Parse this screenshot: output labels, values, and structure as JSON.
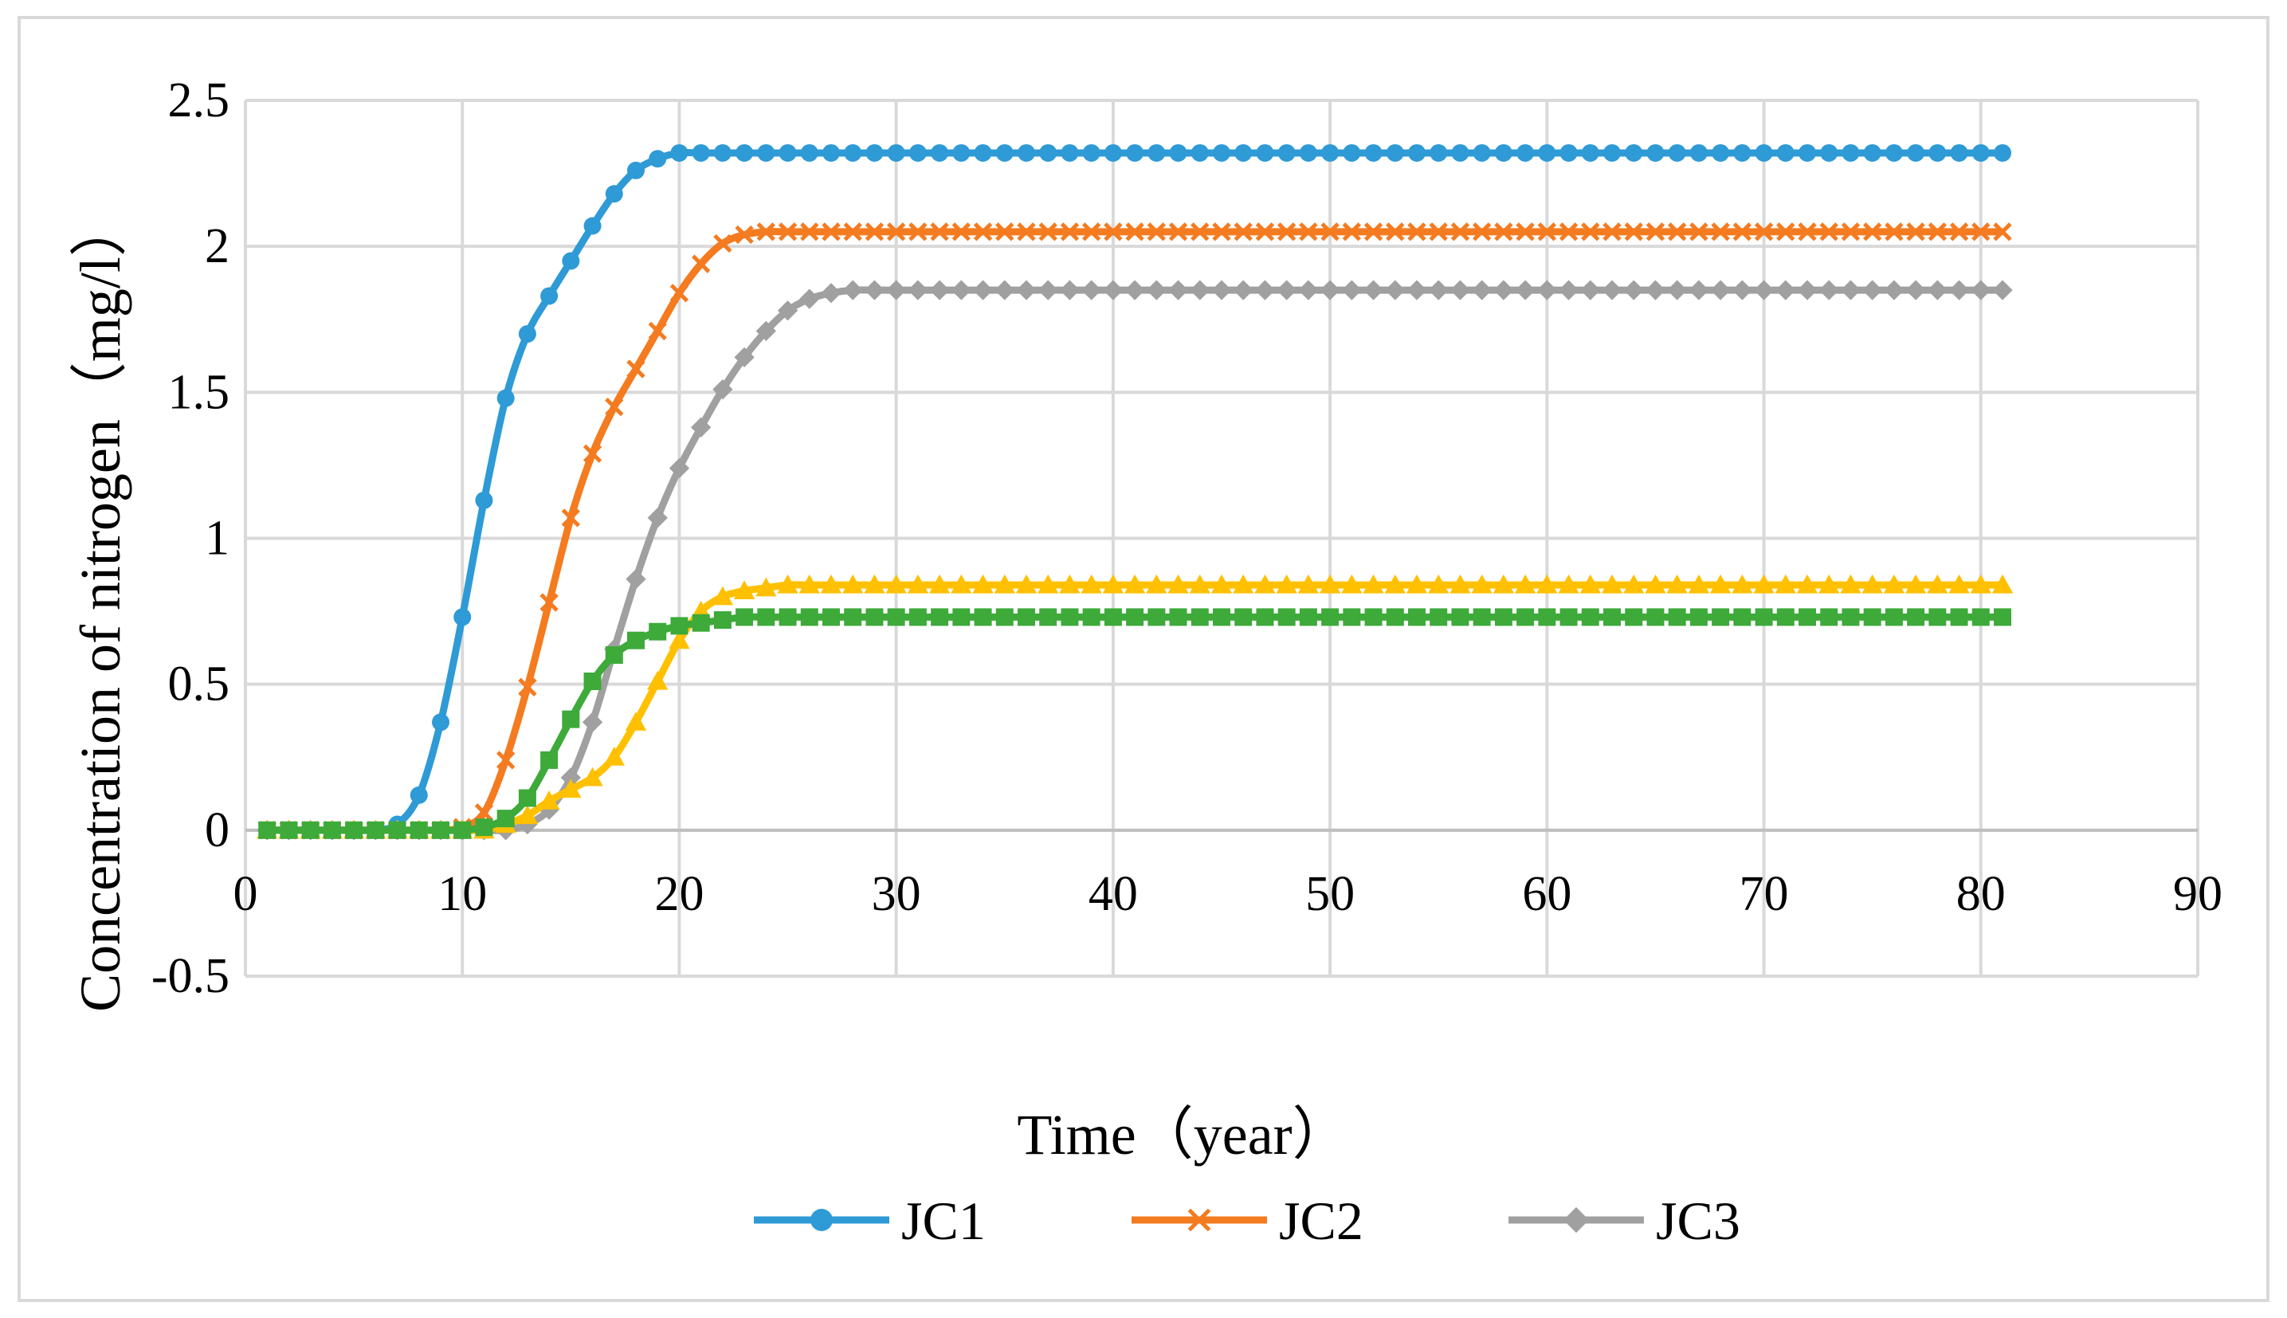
{
  "chart_data": {
    "type": "line",
    "title": "",
    "xlabel": "Time（year）",
    "ylabel": "Concentration of nitrogen（mg/l）",
    "xlim": [
      0,
      90
    ],
    "ylim": [
      -0.5,
      2.5
    ],
    "xticks": [
      "0",
      "10",
      "20",
      "30",
      "40",
      "50",
      "60",
      "70",
      "80",
      "90"
    ],
    "yticks": [
      "2.5",
      "2",
      "1.5",
      "1",
      "0.5",
      "0",
      "-0.5"
    ],
    "grid": true,
    "legend": "bottom-center",
    "x": [
      1,
      2,
      3,
      4,
      5,
      6,
      7,
      8,
      9,
      10,
      11,
      12,
      13,
      14,
      15,
      16,
      17,
      18,
      19,
      20,
      21,
      22,
      23,
      24,
      25,
      26,
      27,
      28,
      29,
      30,
      31,
      32,
      33,
      34,
      35,
      36,
      37,
      38,
      39,
      40,
      41,
      42,
      43,
      44,
      45,
      46,
      47,
      48,
      49,
      50,
      51,
      52,
      53,
      54,
      55,
      56,
      57,
      58,
      59,
      60,
      61,
      62,
      63,
      64,
      65,
      66,
      67,
      68,
      69,
      70,
      71,
      72,
      73,
      74,
      75,
      76,
      77,
      78,
      79,
      80,
      81
    ],
    "series": [
      {
        "name": "JC1",
        "color": "#2E9AD6",
        "marker": "circle",
        "in_legend": true,
        "values": [
          0,
          0,
          0,
          0,
          0,
          0,
          0.02,
          0.12,
          0.37,
          0.73,
          1.13,
          1.48,
          1.7,
          1.83,
          1.95,
          2.07,
          2.18,
          2.26,
          2.3,
          2.32,
          2.32,
          2.32,
          2.32,
          2.32,
          2.32,
          2.32,
          2.32,
          2.32,
          2.32,
          2.32,
          2.32,
          2.32,
          2.32,
          2.32,
          2.32,
          2.32,
          2.32,
          2.32,
          2.32,
          2.32,
          2.32,
          2.32,
          2.32,
          2.32,
          2.32,
          2.32,
          2.32,
          2.32,
          2.32,
          2.32,
          2.32,
          2.32,
          2.32,
          2.32,
          2.32,
          2.32,
          2.32,
          2.32,
          2.32,
          2.32,
          2.32,
          2.32,
          2.32,
          2.32,
          2.32,
          2.32,
          2.32,
          2.32,
          2.32,
          2.32,
          2.32,
          2.32,
          2.32,
          2.32,
          2.32,
          2.32,
          2.32,
          2.32,
          2.32,
          2.32,
          2.32
        ]
      },
      {
        "name": "JC2",
        "color": "#F47B20",
        "marker": "x",
        "in_legend": true,
        "values": [
          0,
          0,
          0,
          0,
          0,
          0,
          0,
          0,
          0,
          0.01,
          0.06,
          0.24,
          0.49,
          0.78,
          1.07,
          1.29,
          1.45,
          1.58,
          1.71,
          1.84,
          1.94,
          2.01,
          2.04,
          2.05,
          2.05,
          2.05,
          2.05,
          2.05,
          2.05,
          2.05,
          2.05,
          2.05,
          2.05,
          2.05,
          2.05,
          2.05,
          2.05,
          2.05,
          2.05,
          2.05,
          2.05,
          2.05,
          2.05,
          2.05,
          2.05,
          2.05,
          2.05,
          2.05,
          2.05,
          2.05,
          2.05,
          2.05,
          2.05,
          2.05,
          2.05,
          2.05,
          2.05,
          2.05,
          2.05,
          2.05,
          2.05,
          2.05,
          2.05,
          2.05,
          2.05,
          2.05,
          2.05,
          2.05,
          2.05,
          2.05,
          2.05,
          2.05,
          2.05,
          2.05,
          2.05,
          2.05,
          2.05,
          2.05,
          2.05,
          2.05,
          2.05
        ]
      },
      {
        "name": "JC3",
        "color": "#A0A0A0",
        "marker": "diamond",
        "in_legend": true,
        "values": [
          0,
          0,
          0,
          0,
          0,
          0,
          0,
          0,
          0,
          0,
          0,
          0,
          0.02,
          0.07,
          0.18,
          0.37,
          0.62,
          0.86,
          1.07,
          1.24,
          1.38,
          1.51,
          1.62,
          1.71,
          1.78,
          1.82,
          1.84,
          1.85,
          1.85,
          1.85,
          1.85,
          1.85,
          1.85,
          1.85,
          1.85,
          1.85,
          1.85,
          1.85,
          1.85,
          1.85,
          1.85,
          1.85,
          1.85,
          1.85,
          1.85,
          1.85,
          1.85,
          1.85,
          1.85,
          1.85,
          1.85,
          1.85,
          1.85,
          1.85,
          1.85,
          1.85,
          1.85,
          1.85,
          1.85,
          1.85,
          1.85,
          1.85,
          1.85,
          1.85,
          1.85,
          1.85,
          1.85,
          1.85,
          1.85,
          1.85,
          1.85,
          1.85,
          1.85,
          1.85,
          1.85,
          1.85,
          1.85,
          1.85,
          1.85,
          1.85,
          1.85
        ]
      },
      {
        "name": "",
        "color": "#FFC000",
        "marker": "triangle",
        "in_legend": false,
        "values": [
          0,
          0,
          0,
          0,
          0,
          0,
          0,
          0,
          0,
          0,
          0,
          0.02,
          0.05,
          0.1,
          0.14,
          0.18,
          0.25,
          0.37,
          0.51,
          0.65,
          0.75,
          0.8,
          0.82,
          0.83,
          0.84,
          0.84,
          0.84,
          0.84,
          0.84,
          0.84,
          0.84,
          0.84,
          0.84,
          0.84,
          0.84,
          0.84,
          0.84,
          0.84,
          0.84,
          0.84,
          0.84,
          0.84,
          0.84,
          0.84,
          0.84,
          0.84,
          0.84,
          0.84,
          0.84,
          0.84,
          0.84,
          0.84,
          0.84,
          0.84,
          0.84,
          0.84,
          0.84,
          0.84,
          0.84,
          0.84,
          0.84,
          0.84,
          0.84,
          0.84,
          0.84,
          0.84,
          0.84,
          0.84,
          0.84,
          0.84,
          0.84,
          0.84,
          0.84,
          0.84,
          0.84,
          0.84,
          0.84,
          0.84,
          0.84,
          0.84,
          0.84
        ]
      },
      {
        "name": "",
        "color": "#3DAA3A",
        "marker": "square",
        "in_legend": false,
        "values": [
          0,
          0,
          0,
          0,
          0,
          0,
          0,
          0,
          0,
          0,
          0.01,
          0.04,
          0.11,
          0.24,
          0.38,
          0.51,
          0.6,
          0.65,
          0.68,
          0.7,
          0.71,
          0.72,
          0.73,
          0.73,
          0.73,
          0.73,
          0.73,
          0.73,
          0.73,
          0.73,
          0.73,
          0.73,
          0.73,
          0.73,
          0.73,
          0.73,
          0.73,
          0.73,
          0.73,
          0.73,
          0.73,
          0.73,
          0.73,
          0.73,
          0.73,
          0.73,
          0.73,
          0.73,
          0.73,
          0.73,
          0.73,
          0.73,
          0.73,
          0.73,
          0.73,
          0.73,
          0.73,
          0.73,
          0.73,
          0.73,
          0.73,
          0.73,
          0.73,
          0.73,
          0.73,
          0.73,
          0.73,
          0.73,
          0.73,
          0.73,
          0.73,
          0.73,
          0.73,
          0.73,
          0.73,
          0.73,
          0.73,
          0.73,
          0.73,
          0.73,
          0.73
        ]
      }
    ]
  }
}
